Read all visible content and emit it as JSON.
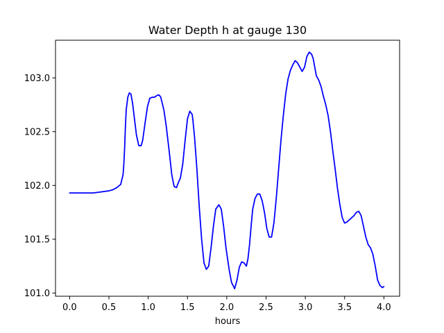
{
  "chart_data": {
    "type": "line",
    "title": "Water Depth h at gauge 130",
    "xlabel": "hours",
    "ylabel": "",
    "xlim": [
      -0.18,
      4.2
    ],
    "ylim": [
      100.97,
      103.35
    ],
    "xticks": [
      0.0,
      0.5,
      1.0,
      1.5,
      2.0,
      2.5,
      3.0,
      3.5,
      4.0
    ],
    "xtick_labels": [
      "0.0",
      "0.5",
      "1.0",
      "1.5",
      "2.0",
      "2.5",
      "3.0",
      "3.5",
      "4.0"
    ],
    "yticks": [
      101.0,
      101.5,
      102.0,
      102.5,
      103.0
    ],
    "ytick_labels": [
      "101.0",
      "101.5",
      "102.0",
      "102.5",
      "103.0"
    ],
    "grid": false,
    "series": [
      {
        "color": "#0000ff",
        "x": [
          0.0,
          0.1,
          0.2,
          0.3,
          0.4,
          0.5,
          0.55,
          0.6,
          0.65,
          0.68,
          0.69,
          0.7,
          0.71,
          0.72,
          0.74,
          0.76,
          0.78,
          0.8,
          0.82,
          0.85,
          0.88,
          0.91,
          0.93,
          0.96,
          0.99,
          1.02,
          1.05,
          1.08,
          1.1,
          1.12,
          1.14,
          1.16,
          1.18,
          1.2,
          1.23,
          1.27,
          1.3,
          1.33,
          1.36,
          1.38,
          1.41,
          1.44,
          1.47,
          1.5,
          1.53,
          1.56,
          1.57,
          1.59,
          1.62,
          1.65,
          1.68,
          1.71,
          1.74,
          1.77,
          1.8,
          1.83,
          1.86,
          1.9,
          1.93,
          1.96,
          1.99,
          2.03,
          2.06,
          2.1,
          2.13,
          2.16,
          2.19,
          2.22,
          2.25,
          2.27,
          2.29,
          2.31,
          2.33,
          2.36,
          2.39,
          2.42,
          2.45,
          2.48,
          2.51,
          2.54,
          2.57,
          2.6,
          2.63,
          2.66,
          2.69,
          2.72,
          2.75,
          2.78,
          2.81,
          2.84,
          2.87,
          2.9,
          2.93,
          2.96,
          2.99,
          3.02,
          3.05,
          3.08,
          3.1,
          3.12,
          3.14,
          3.17,
          3.2,
          3.23,
          3.26,
          3.29,
          3.32,
          3.35,
          3.38,
          3.41,
          3.44,
          3.47,
          3.5,
          3.53,
          3.56,
          3.59,
          3.62,
          3.65,
          3.68,
          3.71,
          3.74,
          3.77,
          3.8,
          3.83,
          3.86,
          3.89,
          3.92,
          3.95,
          3.98,
          4.0
        ],
        "y": [
          101.93,
          101.93,
          101.93,
          101.93,
          101.94,
          101.95,
          101.96,
          101.98,
          102.01,
          102.1,
          102.2,
          102.35,
          102.55,
          102.7,
          102.82,
          102.86,
          102.85,
          102.77,
          102.65,
          102.47,
          102.37,
          102.37,
          102.42,
          102.58,
          102.73,
          102.81,
          102.82,
          102.82,
          102.83,
          102.84,
          102.84,
          102.82,
          102.76,
          102.7,
          102.55,
          102.3,
          102.1,
          101.99,
          101.98,
          102.02,
          102.07,
          102.2,
          102.42,
          102.62,
          102.69,
          102.66,
          102.6,
          102.45,
          102.15,
          101.8,
          101.5,
          101.28,
          101.22,
          101.25,
          101.42,
          101.62,
          101.78,
          101.82,
          101.78,
          101.62,
          101.42,
          101.22,
          101.1,
          101.04,
          101.12,
          101.24,
          101.29,
          101.28,
          101.25,
          101.32,
          101.45,
          101.62,
          101.78,
          101.88,
          101.92,
          101.92,
          101.86,
          101.75,
          101.6,
          101.52,
          101.52,
          101.65,
          101.88,
          102.15,
          102.42,
          102.65,
          102.85,
          102.99,
          103.07,
          103.12,
          103.16,
          103.14,
          103.1,
          103.06,
          103.1,
          103.2,
          103.24,
          103.22,
          103.18,
          103.1,
          103.02,
          102.98,
          102.92,
          102.83,
          102.75,
          102.65,
          102.5,
          102.32,
          102.15,
          101.97,
          101.82,
          101.7,
          101.65,
          101.66,
          101.68,
          101.7,
          101.72,
          101.75,
          101.76,
          101.72,
          101.62,
          101.52,
          101.45,
          101.42,
          101.36,
          101.25,
          101.12,
          101.07,
          101.05,
          101.06
        ]
      }
    ]
  }
}
